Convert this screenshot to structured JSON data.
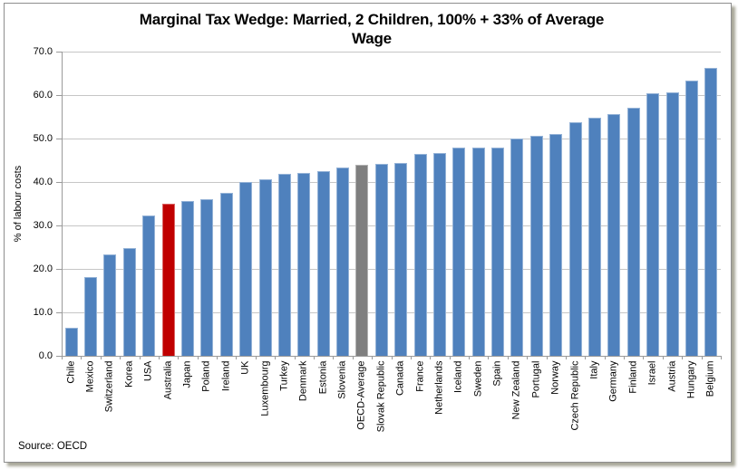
{
  "title": {
    "line1": "Marginal Tax Wedge: Married, 2 Children, 100% + 33% of Average",
    "line2": "Wage"
  },
  "source": "Source: OECD",
  "chart_data": {
    "type": "bar",
    "title": "Marginal Tax Wedge: Married, 2 Children, 100% + 33% of Average Wage",
    "xlabel": "",
    "ylabel": "% of labour costs",
    "ylim": [
      0,
      70
    ],
    "ytick_step": 10,
    "ytick_labels": [
      "0.0",
      "10.0",
      "20.0",
      "30.0",
      "40.0",
      "50.0",
      "60.0",
      "70.0"
    ],
    "grid": "horizontal",
    "legend": "none",
    "categories": [
      "Chile",
      "Mexico",
      "Switzerland",
      "Korea",
      "USA",
      "Australia",
      "Japan",
      "Poland",
      "Ireland",
      "UK",
      "Luxembourg",
      "Turkey",
      "Denmark",
      "Estonia",
      "Slovenia",
      "OECD-Average",
      "Slovak Republic",
      "Canada",
      "France",
      "Netherlands",
      "Iceland",
      "Sweden",
      "Spain",
      "New Zealand",
      "Portugal",
      "Norway",
      "Czech Republic",
      "Italy",
      "Germany",
      "Finland",
      "Israel",
      "Austria",
      "Hungary",
      "Belgium"
    ],
    "values": [
      6.4,
      18.2,
      23.3,
      24.7,
      32.3,
      35.1,
      35.7,
      36.0,
      37.6,
      40.0,
      40.7,
      41.9,
      42.1,
      42.6,
      43.4,
      43.9,
      44.2,
      44.3,
      46.5,
      46.7,
      47.9,
      48.0,
      48.0,
      50.1,
      50.6,
      51.0,
      53.8,
      54.8,
      55.6,
      57.0,
      60.4,
      60.6,
      63.3,
      66.3
    ],
    "colors": {
      "default": "#4F81BD",
      "overrides": {
        "Australia": "#C00000",
        "OECD-Average": "#7F7F7F"
      }
    },
    "gridline_color": "#C6C6C6",
    "axis_color": "#9A9A9A"
  }
}
